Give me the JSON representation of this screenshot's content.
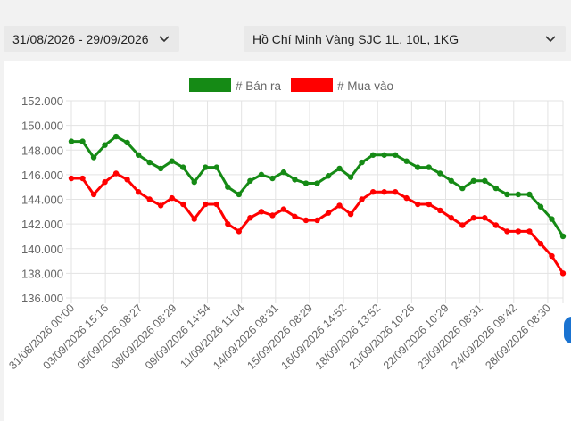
{
  "filters": {
    "date_range": "31/08/2026 - 29/09/2026",
    "location": "Hồ Chí Minh Vàng SJC 1L, 10L, 1KG"
  },
  "icons": {
    "dropdown": "chevron-down-icon"
  },
  "colors": {
    "sell": "#158a15",
    "buy": "#ff0000",
    "grid": "#e3e3e3",
    "scroll_indicator": "#1a73d1"
  },
  "chart_data": {
    "type": "line",
    "legend_position": "top-center",
    "grid": true,
    "ylim": [
      136000,
      152000
    ],
    "y_ticks": [
      "136.000",
      "138.000",
      "140.000",
      "142.000",
      "144.000",
      "146.000",
      "148.000",
      "150.000",
      "152.000"
    ],
    "x_tick_labels": [
      "31/08/2026 00:00",
      "03/09/2026 15:16",
      "05/09/2026 08:27",
      "08/09/2026 08:29",
      "09/09/2026 14:54",
      "11/09/2026 11:04",
      "14/09/2026 08:31",
      "15/09/2026 08:29",
      "16/09/2026 14:52",
      "18/09/2026 13:52",
      "21/09/2026 10:26",
      "22/09/2026 10:29",
      "23/09/2026 08:31",
      "24/09/2026 09:42",
      "28/09/2026 08:30"
    ],
    "series": [
      {
        "name": "# Bán ra",
        "color": "#158a15",
        "values": [
          148700,
          148700,
          147400,
          148400,
          149100,
          148600,
          147600,
          147000,
          146500,
          147100,
          146600,
          145400,
          146600,
          146600,
          145000,
          144400,
          145500,
          146000,
          145700,
          146200,
          145600,
          145300,
          145300,
          145900,
          146500,
          145800,
          147000,
          147600,
          147600,
          147600,
          147100,
          146600,
          146600,
          146100,
          145500,
          144900,
          145500,
          145500,
          144900,
          144400,
          144400,
          144400,
          143400,
          142400,
          141000
        ]
      },
      {
        "name": "# Mua vào",
        "color": "#ff0000",
        "values": [
          145700,
          145700,
          144400,
          145400,
          146100,
          145600,
          144600,
          144000,
          143500,
          144100,
          143600,
          142400,
          143600,
          143600,
          142000,
          141400,
          142500,
          143000,
          142700,
          143200,
          142600,
          142300,
          142300,
          142900,
          143500,
          142800,
          144000,
          144600,
          144600,
          144600,
          144100,
          143600,
          143600,
          143100,
          142500,
          141900,
          142500,
          142500,
          141900,
          141400,
          141400,
          141400,
          140400,
          139400,
          138000
        ]
      }
    ]
  }
}
